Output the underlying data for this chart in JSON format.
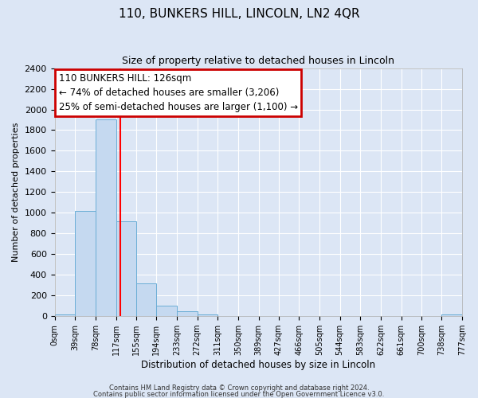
{
  "title": "110, BUNKERS HILL, LINCOLN, LN2 4QR",
  "subtitle": "Size of property relative to detached houses in Lincoln",
  "xlabel": "Distribution of detached houses by size in Lincoln",
  "ylabel": "Number of detached properties",
  "bar_edges": [
    0,
    39,
    78,
    117,
    155,
    194,
    233,
    272,
    311,
    350,
    389,
    427,
    466,
    505,
    544,
    583,
    622,
    661,
    700,
    738,
    777
  ],
  "bar_heights": [
    20,
    1020,
    1900,
    920,
    320,
    105,
    48,
    15,
    0,
    0,
    0,
    0,
    0,
    0,
    0,
    0,
    0,
    0,
    0,
    15
  ],
  "bar_color": "#c5d9f0",
  "bar_edge_color": "#6baed6",
  "red_line_x": 126,
  "ylim": [
    0,
    2400
  ],
  "yticks": [
    0,
    200,
    400,
    600,
    800,
    1000,
    1200,
    1400,
    1600,
    1800,
    2000,
    2200,
    2400
  ],
  "xtick_labels": [
    "0sqm",
    "39sqm",
    "78sqm",
    "117sqm",
    "155sqm",
    "194sqm",
    "233sqm",
    "272sqm",
    "311sqm",
    "350sqm",
    "389sqm",
    "427sqm",
    "466sqm",
    "505sqm",
    "544sqm",
    "583sqm",
    "622sqm",
    "661sqm",
    "700sqm",
    "738sqm",
    "777sqm"
  ],
  "annotation_title": "110 BUNKERS HILL: 126sqm",
  "annotation_line1": "← 74% of detached houses are smaller (3,206)",
  "annotation_line2": "25% of semi-detached houses are larger (1,100) →",
  "annotation_box_color": "#ffffff",
  "annotation_box_edge": "#cc0000",
  "footer_line1": "Contains HM Land Registry data © Crown copyright and database right 2024.",
  "footer_line2": "Contains public sector information licensed under the Open Government Licence v3.0.",
  "background_color": "#dce6f5",
  "plot_bg_color": "#dce6f5",
  "grid_color": "#ffffff",
  "title_fontsize": 11,
  "subtitle_fontsize": 9,
  "ylabel_fontsize": 8,
  "xlabel_fontsize": 8.5
}
